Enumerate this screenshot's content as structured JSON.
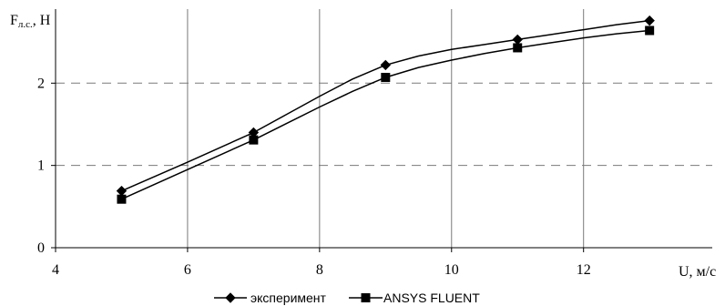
{
  "chart_data": {
    "type": "line",
    "ylabel": "F",
    "ylabel_sub": "л.с.",
    "ylabel_unit": ", Н",
    "xlabel": "U, м/с",
    "xlim": [
      4,
      13.95
    ],
    "ylim": [
      0,
      2.9
    ],
    "x_ticks": [
      4,
      6,
      8,
      10,
      12
    ],
    "y_ticks": [
      0,
      1,
      2
    ],
    "grid": {
      "vertical": "solid",
      "horizontal": "dashed"
    },
    "legend_position": "bottom",
    "series": [
      {
        "name": "эксперимент",
        "marker": "diamond",
        "color": "#000000",
        "points": [
          [
            5,
            0.69
          ],
          [
            7,
            1.4
          ],
          [
            9,
            2.22
          ],
          [
            11,
            2.53
          ],
          [
            13,
            2.76
          ]
        ],
        "curve": [
          [
            5,
            0.69
          ],
          [
            6,
            1.04
          ],
          [
            7,
            1.4
          ],
          [
            7.5,
            1.62
          ],
          [
            8,
            1.84
          ],
          [
            8.5,
            2.05
          ],
          [
            9,
            2.22
          ],
          [
            9.5,
            2.33
          ],
          [
            10,
            2.41
          ],
          [
            10.5,
            2.47
          ],
          [
            11,
            2.53
          ],
          [
            11.5,
            2.59
          ],
          [
            12,
            2.65
          ],
          [
            12.5,
            2.71
          ],
          [
            13,
            2.76
          ]
        ]
      },
      {
        "name": "ANSYS FLUENT",
        "marker": "square",
        "color": "#000000",
        "points": [
          [
            5,
            0.59
          ],
          [
            7,
            1.31
          ],
          [
            9,
            2.07
          ],
          [
            11,
            2.43
          ],
          [
            13,
            2.64
          ]
        ],
        "curve": [
          [
            5,
            0.59
          ],
          [
            6,
            0.95
          ],
          [
            7,
            1.31
          ],
          [
            7.5,
            1.51
          ],
          [
            8,
            1.71
          ],
          [
            8.5,
            1.9
          ],
          [
            9,
            2.07
          ],
          [
            9.5,
            2.19
          ],
          [
            10,
            2.28
          ],
          [
            10.5,
            2.36
          ],
          [
            11,
            2.43
          ],
          [
            11.5,
            2.49
          ],
          [
            12,
            2.55
          ],
          [
            12.5,
            2.6
          ],
          [
            13,
            2.64
          ]
        ]
      }
    ]
  }
}
